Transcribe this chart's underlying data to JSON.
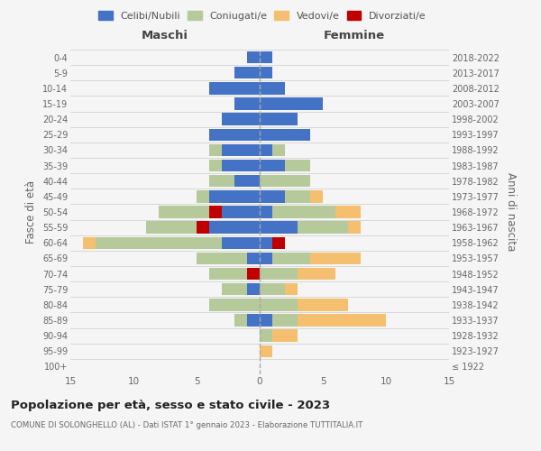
{
  "age_groups": [
    "100+",
    "95-99",
    "90-94",
    "85-89",
    "80-84",
    "75-79",
    "70-74",
    "65-69",
    "60-64",
    "55-59",
    "50-54",
    "45-49",
    "40-44",
    "35-39",
    "30-34",
    "25-29",
    "20-24",
    "15-19",
    "10-14",
    "5-9",
    "0-4"
  ],
  "birth_years": [
    "≤ 1922",
    "1923-1927",
    "1928-1932",
    "1933-1937",
    "1938-1942",
    "1943-1947",
    "1948-1952",
    "1953-1957",
    "1958-1962",
    "1963-1967",
    "1968-1972",
    "1973-1977",
    "1978-1982",
    "1983-1987",
    "1988-1992",
    "1993-1997",
    "1998-2002",
    "2003-2007",
    "2008-2012",
    "2013-2017",
    "2018-2022"
  ],
  "maschi": {
    "celibi": [
      0,
      0,
      0,
      1,
      0,
      1,
      0,
      1,
      3,
      4,
      3,
      4,
      2,
      3,
      3,
      4,
      3,
      2,
      4,
      2,
      1
    ],
    "coniugati": [
      0,
      0,
      0,
      1,
      4,
      2,
      4,
      4,
      10,
      5,
      5,
      1,
      2,
      1,
      1,
      0,
      0,
      0,
      0,
      0,
      0
    ],
    "vedovi": [
      0,
      0,
      0,
      0,
      0,
      0,
      0,
      0,
      1,
      0,
      0,
      0,
      0,
      0,
      0,
      0,
      0,
      0,
      0,
      0,
      0
    ],
    "divorziati": [
      0,
      0,
      0,
      0,
      0,
      0,
      1,
      0,
      0,
      1,
      1,
      0,
      0,
      0,
      0,
      0,
      0,
      0,
      0,
      0,
      0
    ]
  },
  "femmine": {
    "nubili": [
      0,
      0,
      0,
      1,
      0,
      0,
      0,
      1,
      1,
      3,
      1,
      2,
      0,
      2,
      1,
      4,
      3,
      5,
      2,
      1,
      1
    ],
    "coniugate": [
      0,
      0,
      1,
      2,
      3,
      2,
      3,
      3,
      1,
      4,
      5,
      2,
      4,
      2,
      1,
      0,
      0,
      0,
      0,
      0,
      0
    ],
    "vedove": [
      0,
      1,
      2,
      7,
      4,
      1,
      3,
      4,
      0,
      1,
      2,
      1,
      0,
      0,
      0,
      0,
      0,
      0,
      0,
      0,
      0
    ],
    "divorziate": [
      0,
      0,
      0,
      0,
      0,
      0,
      0,
      0,
      1,
      0,
      0,
      0,
      0,
      0,
      0,
      0,
      0,
      0,
      0,
      0,
      0
    ]
  },
  "colors": {
    "celibi": "#4472c4",
    "coniugati": "#b5c99a",
    "vedovi": "#f4c06f",
    "divorziati": "#c00000"
  },
  "xlim": 15,
  "title": "Popolazione per età, sesso e stato civile - 2023",
  "subtitle": "COMUNE DI SOLONGHELLO (AL) - Dati ISTAT 1° gennaio 2023 - Elaborazione TUTTITALIA.IT",
  "ylabel_left": "Fasce di età",
  "ylabel_right": "Anni di nascita",
  "legend_labels": [
    "Celibi/Nubili",
    "Coniugati/e",
    "Vedovi/e",
    "Divorziati/e"
  ],
  "bg_color": "#f5f5f5",
  "maschi_label": "Maschi",
  "femmine_label": "Femmine"
}
